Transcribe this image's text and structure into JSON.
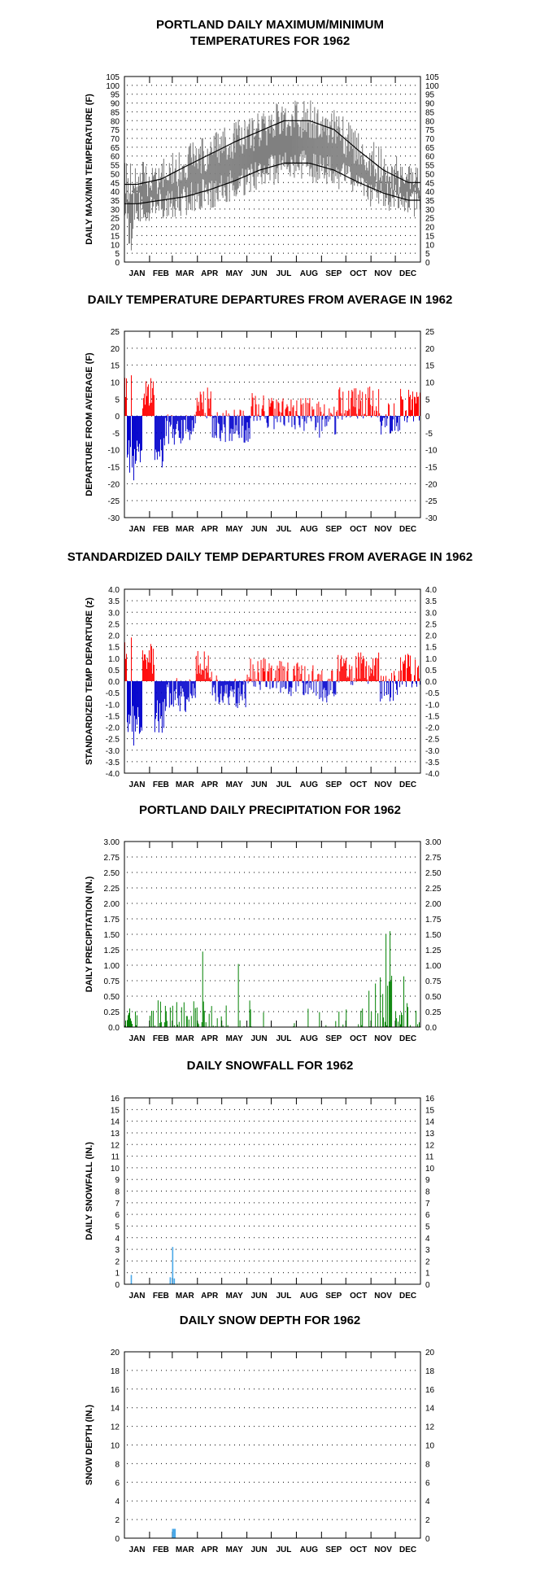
{
  "months": [
    "JAN",
    "FEB",
    "MAR",
    "APR",
    "MAY",
    "JUN",
    "JUL",
    "AUG",
    "SEP",
    "OCT",
    "NOV",
    "DEC"
  ],
  "colors": {
    "observed": "#808080",
    "normal": "#000000",
    "positive": "#ff0000",
    "negative": "#0000cc",
    "precip": "#008000",
    "snow": "#4aa8e8"
  },
  "chart_data": [
    {
      "type": "line",
      "title_lines": [
        "PORTLAND DAILY MAXIMUM/MINIMUM",
        "TEMPERATURES FOR 1962"
      ],
      "ylabel": "DAILY MAX/MIN TEMPERATURE (F)",
      "ylim": [
        0,
        105
      ],
      "yticks": [
        0,
        5,
        10,
        15,
        20,
        25,
        30,
        35,
        40,
        45,
        50,
        55,
        60,
        65,
        70,
        75,
        80,
        85,
        90,
        95,
        100,
        105
      ],
      "grid": true,
      "series": [
        {
          "kind": "observed_max_min_range"
        },
        {
          "kind": "normal_max",
          "values_by_month_mid": [
            44,
            47,
            54,
            61,
            68,
            74,
            80,
            80,
            75,
            63,
            52,
            45
          ]
        },
        {
          "kind": "normal_min",
          "values_by_month_mid": [
            33,
            35,
            37,
            41,
            46,
            52,
            56,
            56,
            52,
            45,
            39,
            35
          ]
        }
      ],
      "observed_monthly_range_approx": [
        [
          12,
          62
        ],
        [
          20,
          60
        ],
        [
          28,
          64
        ],
        [
          35,
          72
        ],
        [
          38,
          78
        ],
        [
          45,
          85
        ],
        [
          48,
          92
        ],
        [
          50,
          88
        ],
        [
          45,
          90
        ],
        [
          38,
          80
        ],
        [
          32,
          62
        ],
        [
          22,
          56
        ]
      ]
    },
    {
      "type": "bar",
      "title_lines": [
        "DAILY TEMPERATURE DEPARTURES FROM AVERAGE IN 1962"
      ],
      "ylabel": "DEPARTURE FROM AVERAGE (F)",
      "ylim": [
        -30,
        25
      ],
      "yticks": [
        -30,
        -25,
        -20,
        -15,
        -10,
        -5,
        0,
        5,
        10,
        15,
        20,
        25
      ],
      "grid": true,
      "extremes": {
        "max": 12,
        "min": -19
      }
    },
    {
      "type": "bar",
      "title_lines": [
        "STANDARDIZED DAILY TEMP DEPARTURES FROM AVERAGE IN 1962"
      ],
      "ylabel": "STANDARDIZED TEMP DEPARTURE (z)",
      "ylim": [
        -4.0,
        4.0
      ],
      "yticks": [
        "-4.0",
        "-3.5",
        "-3.0",
        "-2.5",
        "-2.0",
        "-1.5",
        "-1.0",
        "-0.5",
        "0.0",
        "0.5",
        "1.0",
        "1.5",
        "2.0",
        "2.5",
        "3.0",
        "3.5",
        "4.0"
      ],
      "grid": true,
      "extremes": {
        "max": 1.9,
        "min": -2.8
      }
    },
    {
      "type": "bar",
      "title_lines": [
        "PORTLAND DAILY PRECIPITATION FOR 1962"
      ],
      "ylabel": "DAILY PRECIPITATION (IN.)",
      "ylim": [
        0,
        3.0
      ],
      "yticks": [
        "0.0",
        "0.25",
        "0.50",
        "0.75",
        "1.00",
        "1.25",
        "1.50",
        "1.75",
        "2.00",
        "2.25",
        "2.50",
        "2.75",
        "3.00"
      ],
      "grid": true,
      "notable_values": [
        {
          "day": 96,
          "value": 1.22
        },
        {
          "day": 140,
          "value": 1.02
        },
        {
          "day": 322,
          "value": 1.5
        },
        {
          "day": 327,
          "value": 1.55
        }
      ]
    },
    {
      "type": "bar",
      "title_lines": [
        "DAILY SNOWFALL FOR 1962"
      ],
      "ylabel": "DAILY SNOWFALL (IN.)",
      "ylim": [
        0,
        16
      ],
      "yticks": [
        0,
        1,
        2,
        3,
        4,
        5,
        6,
        7,
        8,
        9,
        10,
        11,
        12,
        13,
        14,
        15,
        16
      ],
      "grid": true,
      "values": [
        {
          "day": 8,
          "value": 0.8
        },
        {
          "day": 56,
          "value": 0.6
        },
        {
          "day": 59,
          "value": 3.2
        },
        {
          "day": 61,
          "value": 0.5
        }
      ]
    },
    {
      "type": "bar",
      "title_lines": [
        "DAILY SNOW DEPTH FOR 1962"
      ],
      "ylabel": "SNOW DEPTH (IN.)",
      "ylim": [
        0,
        20
      ],
      "yticks": [
        0,
        2,
        4,
        6,
        8,
        10,
        12,
        14,
        16,
        18,
        20
      ],
      "grid": true,
      "values": [
        {
          "day": 59,
          "value": 1
        },
        {
          "day": 60,
          "value": 1
        },
        {
          "day": 61,
          "value": 1
        },
        {
          "day": 62,
          "value": 1
        }
      ]
    }
  ]
}
